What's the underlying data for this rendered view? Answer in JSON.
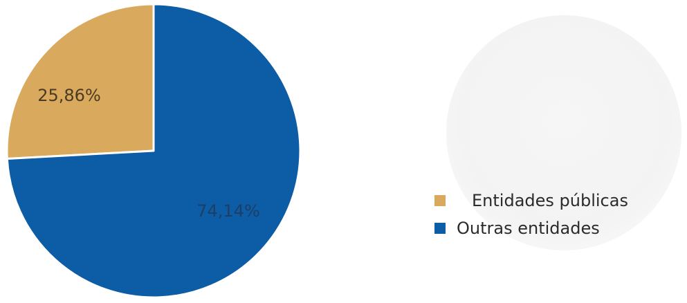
{
  "chart_data": {
    "type": "pie",
    "slices": [
      {
        "label": "Entidades públicas",
        "value": 25.86,
        "data_label": "25,86%",
        "color": "#d9aa5e"
      },
      {
        "label": "Outras entidades",
        "value": 74.14,
        "data_label": "74,14%",
        "color": "#0c5ca6"
      }
    ],
    "legend_position": "right",
    "start_angle": "12 o'clock",
    "direction": "counterclockwise for first slice"
  },
  "legend": {
    "items": [
      {
        "label": "Entidades públicas",
        "color": "#d9aa5e"
      },
      {
        "label": "Outras entidades",
        "color": "#0c5ca6"
      }
    ]
  }
}
